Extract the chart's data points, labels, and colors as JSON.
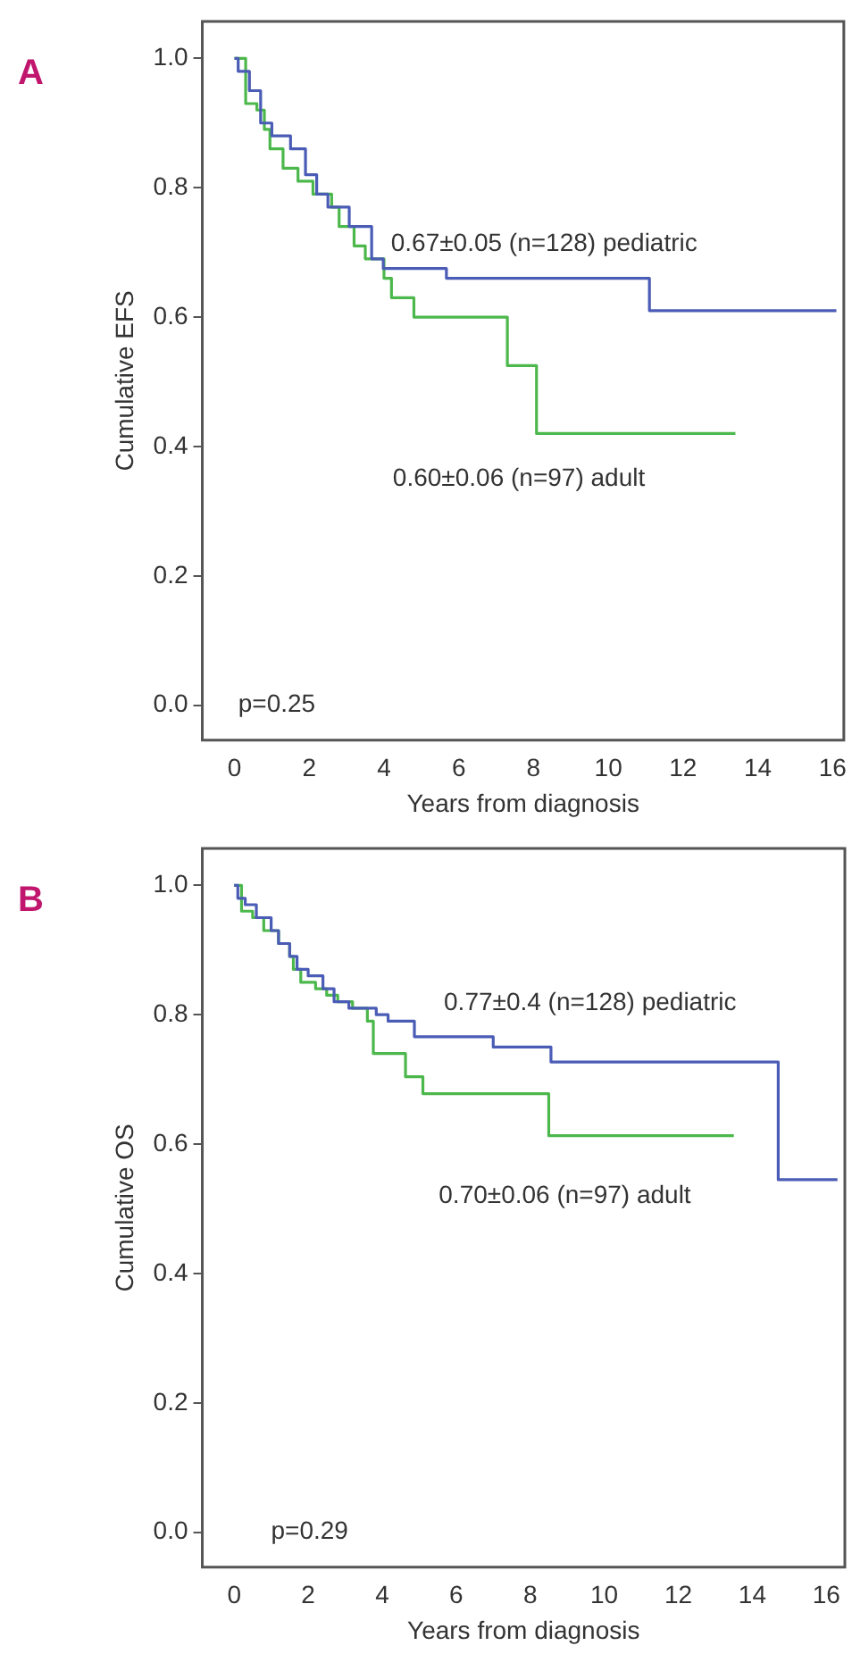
{
  "chart_data": [
    {
      "type": "step",
      "title": "A",
      "xlabel": "Years from diagnosis",
      "ylabel": "Cumulative EFS",
      "xlim": [
        -0.86,
        16.3
      ],
      "ylim": [
        -0.054,
        1.057
      ],
      "xticks": [
        0,
        2,
        4,
        6,
        8,
        10,
        12,
        14,
        16
      ],
      "yticks": [
        {
          "value": 0,
          "label": "0.0"
        },
        {
          "value": 0.2,
          "label": "0.2"
        },
        {
          "value": 0.4,
          "label": "0.4"
        },
        {
          "value": 0.6,
          "label": "0.6"
        },
        {
          "value": 0.8,
          "label": "0.8"
        },
        {
          "value": 1,
          "label": "1.0"
        }
      ],
      "grid": false,
      "legend": false,
      "marker": "none",
      "line_style": "solid",
      "series": [
        {
          "color": "#4a5cb5",
          "x": [
            0,
            0.1,
            0.4,
            0.7,
            1.0,
            1.5,
            1.9,
            2.2,
            2.5,
            3.07,
            3.67,
            3.98,
            5.67,
            11.1,
            16.1
          ],
          "values": [
            1.0,
            0.98,
            0.95,
            0.9,
            0.88,
            0.86,
            0.82,
            0.79,
            0.77,
            0.74,
            0.69,
            0.675,
            0.66,
            0.61,
            0.61
          ]
        },
        {
          "color": "#4cb84c",
          "x": [
            0,
            0.1,
            0.3,
            0.6,
            0.8,
            0.95,
            1.3,
            1.7,
            2.1,
            2.6,
            2.8,
            3.2,
            3.5,
            4.0,
            4.2,
            4.8,
            7.3,
            8.08,
            13.4
          ],
          "values": [
            1.0,
            1.0,
            0.93,
            0.92,
            0.89,
            0.86,
            0.83,
            0.81,
            0.79,
            0.77,
            0.74,
            0.71,
            0.69,
            0.66,
            0.63,
            0.6,
            0.525,
            0.42,
            0.42
          ]
        }
      ],
      "annotations": [
        "0.67±0.05 (n=128) pediatric",
        "0.60±0.06 (n=97) adult",
        "p=0.25"
      ]
    },
    {
      "type": "step",
      "title": "B",
      "xlabel": "Years from diagnosis",
      "ylabel": "Cumulative OS",
      "xlim": [
        -0.86,
        16.5
      ],
      "ylim": [
        -0.054,
        1.057
      ],
      "xticks": [
        0,
        2,
        4,
        6,
        8,
        10,
        12,
        14,
        16
      ],
      "yticks": [
        {
          "value": 0,
          "label": "0.0"
        },
        {
          "value": 0.2,
          "label": "0.2"
        },
        {
          "value": 0.4,
          "label": "0.4"
        },
        {
          "value": 0.6,
          "label": "0.6"
        },
        {
          "value": 0.8,
          "label": "0.8"
        },
        {
          "value": 1,
          "label": "1.0"
        }
      ],
      "grid": false,
      "legend": false,
      "marker": "none",
      "line_style": "solid",
      "series": [
        {
          "color": "#4a5cb5",
          "x": [
            0,
            0.1,
            0.3,
            0.6,
            1.0,
            1.2,
            1.5,
            1.7,
            2.0,
            2.4,
            2.7,
            3.1,
            3.84,
            4.16,
            4.87,
            7.0,
            8.56,
            14.7,
            16.3
          ],
          "values": [
            1.0,
            0.98,
            0.97,
            0.95,
            0.93,
            0.91,
            0.89,
            0.87,
            0.86,
            0.84,
            0.82,
            0.81,
            0.8,
            0.79,
            0.766,
            0.75,
            0.727,
            0.545,
            0.545
          ]
        },
        {
          "color": "#4cb84c",
          "x": [
            0,
            0.1,
            0.2,
            0.5,
            0.8,
            1.2,
            1.5,
            1.6,
            1.8,
            2.2,
            2.5,
            2.8,
            3.2,
            3.6,
            3.76,
            4.63,
            5.1,
            8.5,
            13.5
          ],
          "values": [
            1.0,
            1.0,
            0.96,
            0.95,
            0.93,
            0.91,
            0.89,
            0.87,
            0.85,
            0.84,
            0.83,
            0.82,
            0.81,
            0.79,
            0.74,
            0.704,
            0.678,
            0.613,
            0.613
          ]
        }
      ],
      "annotations": [
        "0.77±0.4 (n=128) pediatric",
        "0.70±0.06 (n=97) adult",
        "p=0.29"
      ]
    }
  ]
}
